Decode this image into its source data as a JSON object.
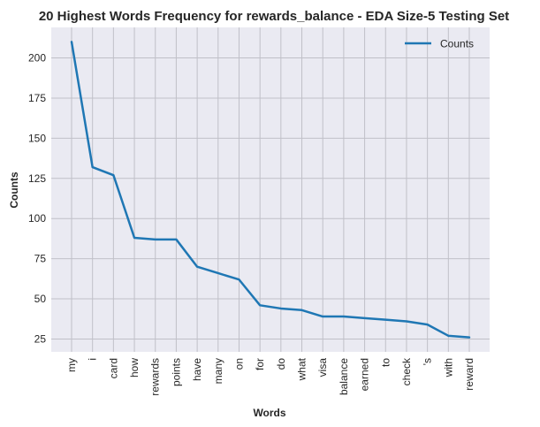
{
  "chart_data": {
    "type": "line",
    "title": "20 Highest Words Frequency for rewards_balance - EDA Size-5 Testing Set",
    "xlabel": "Words",
    "ylabel": "Counts",
    "categories": [
      "my",
      "i",
      "card",
      "how",
      "rewards",
      "points",
      "have",
      "many",
      "on",
      "for",
      "do",
      "what",
      "visa",
      "balance",
      "earned",
      "to",
      "check",
      "'s",
      "with",
      "reward"
    ],
    "series": [
      {
        "name": "Counts",
        "values": [
          210,
          132,
          127,
          88,
          87,
          87,
          70,
          66,
          62,
          46,
          44,
          43,
          39,
          39,
          38,
          37,
          36,
          34,
          27,
          26
        ],
        "color": "#1f77b4"
      }
    ],
    "yticks": [
      25,
      50,
      75,
      100,
      125,
      150,
      175,
      200
    ],
    "ylim": [
      17,
      219
    ],
    "grid": true,
    "legend_position": "top-right",
    "background_color": "#eaeaf2",
    "grid_color": "#c0c0c8"
  }
}
